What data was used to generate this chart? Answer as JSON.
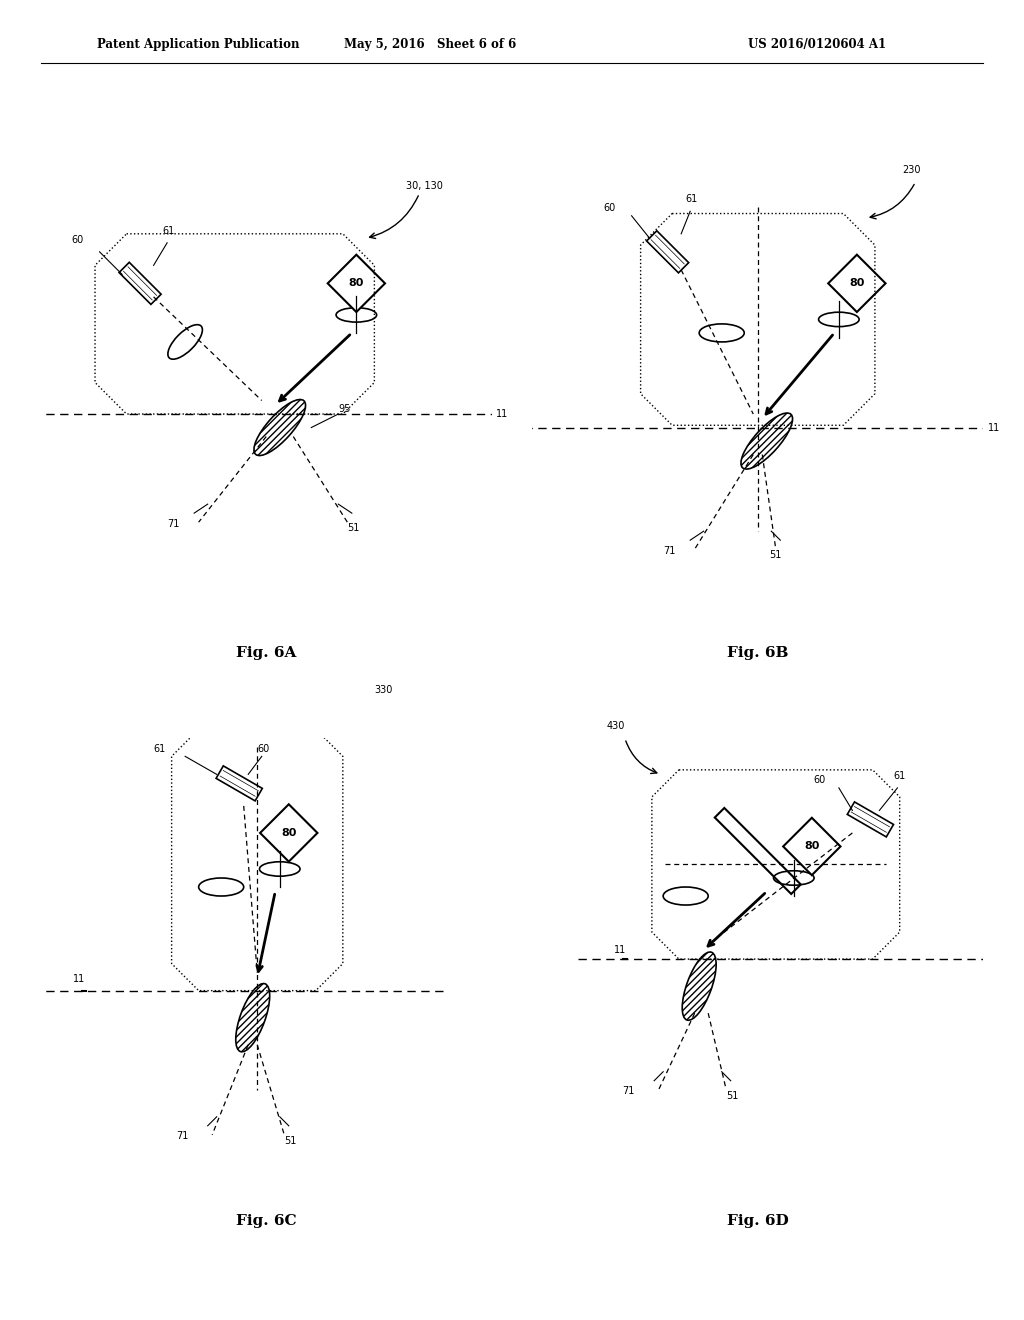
{
  "header_left": "Patent Application Publication",
  "header_mid": "May 5, 2016   Sheet 6 of 6",
  "header_right": "US 2016/0120604 A1",
  "background_color": "#ffffff"
}
